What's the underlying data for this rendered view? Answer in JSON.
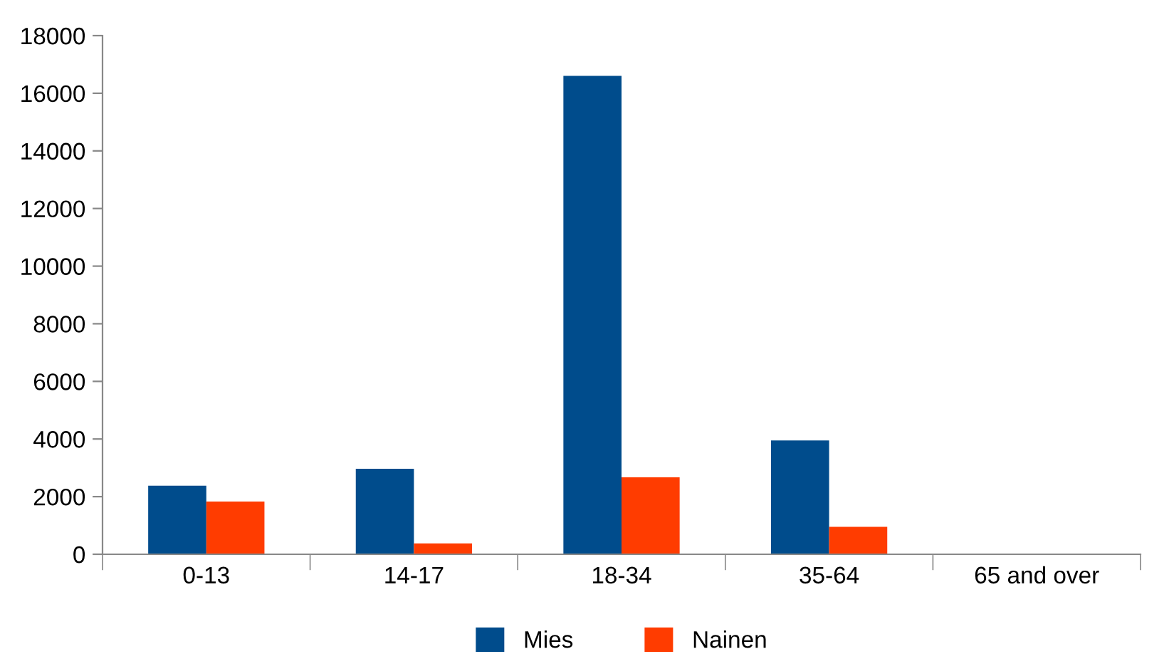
{
  "chart_data": {
    "type": "bar",
    "categories": [
      "0-13",
      "14-17",
      "18-34",
      "35-64",
      "65 and over"
    ],
    "series": [
      {
        "name": "Mies",
        "color": "#004c8c",
        "values": [
          2380,
          2970,
          16600,
          3950,
          20
        ]
      },
      {
        "name": "Nainen",
        "color": "#ff3c00",
        "values": [
          1830,
          380,
          2670,
          950,
          15
        ]
      }
    ],
    "ylim": [
      0,
      18000
    ],
    "yticks": [
      0,
      2000,
      4000,
      6000,
      8000,
      10000,
      12000,
      14000,
      16000,
      18000
    ],
    "grid": false,
    "legend": "bottom"
  }
}
